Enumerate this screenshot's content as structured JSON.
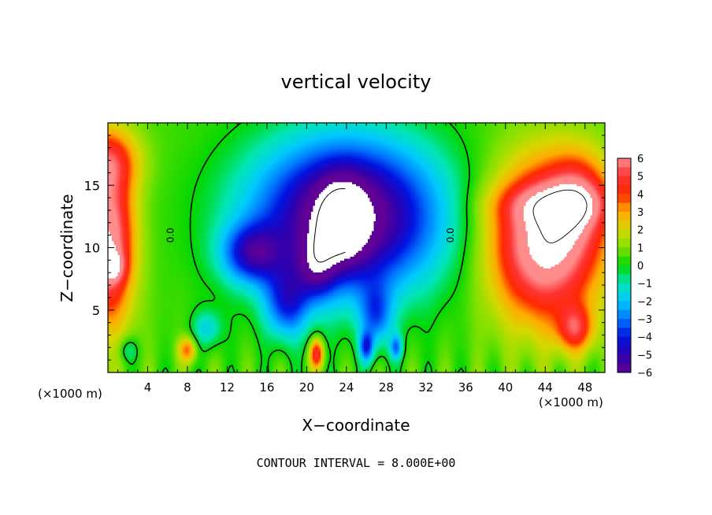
{
  "chart_data": {
    "type": "heatmap",
    "title": "vertical velocity",
    "xlabel": "X−coordinate",
    "ylabel": "Z−coordinate",
    "x_units": "(×1000 m)",
    "xlim": [
      0,
      50
    ],
    "ylim": [
      0,
      20
    ],
    "x_ticks": [
      4,
      8,
      12,
      16,
      20,
      24,
      28,
      32,
      36,
      40,
      44,
      48
    ],
    "y_ticks": [
      5,
      10,
      15
    ],
    "colorbar": {
      "range": [
        -6,
        6
      ],
      "tick_values": [
        6,
        5,
        4,
        3,
        2,
        1,
        0,
        -1,
        -2,
        -3,
        -4,
        -5,
        -6
      ],
      "tick_labels": [
        "6",
        "5",
        "4",
        "3",
        "2",
        "1",
        "0",
        "−1",
        "−2",
        "−3",
        "−4",
        "−5",
        "−6"
      ]
    },
    "contour_labels": [
      {
        "text": "0.0",
        "x": 6.6,
        "z": 11.0
      },
      {
        "text": "0.0",
        "x": 34.8,
        "z": 11.0
      }
    ],
    "footer": "CONTOUR INTERVAL = 8.000E+00"
  }
}
